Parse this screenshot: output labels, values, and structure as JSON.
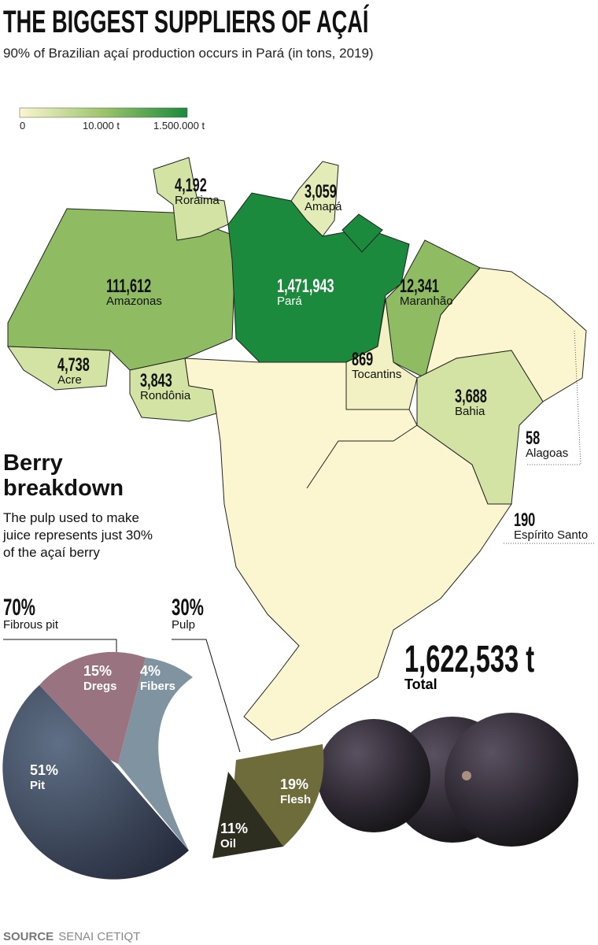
{
  "header": {
    "title": "THE BIGGEST SUPPLIERS OF AÇAÍ",
    "subtitle": "90% of Brazilian açaí production occurs in Pará (in tons, 2019)"
  },
  "legend": {
    "labels": [
      "0",
      "10.000 t",
      "1.500.000 t"
    ]
  },
  "map": {
    "states": [
      {
        "value": "4,192",
        "name": "Roraima"
      },
      {
        "value": "3,059",
        "name": "Amapá"
      },
      {
        "value": "111,612",
        "name": "Amazonas"
      },
      {
        "value": "1,471,943",
        "name": "Pará"
      },
      {
        "value": "12,341",
        "name": "Maranhão"
      },
      {
        "value": "4,738",
        "name": "Acre"
      },
      {
        "value": "3,843",
        "name": "Rondônia"
      },
      {
        "value": "869",
        "name": "Tocantins"
      },
      {
        "value": "3,688",
        "name": "Bahia"
      },
      {
        "value": "58",
        "name": "Alagoas"
      },
      {
        "value": "190",
        "name": "Espírito Santo"
      }
    ],
    "total": {
      "value": "1,622,533 t",
      "label": "Total"
    }
  },
  "breakdown": {
    "title": "Berry breakdown",
    "text": "The pulp used to make juice represents just 30% of the açaí berry",
    "groups": [
      {
        "percent": "70%",
        "label": "Fibrous pit"
      },
      {
        "percent": "30%",
        "label": "Pulp"
      }
    ],
    "parts": [
      {
        "percent": "15%",
        "label": "Dregs"
      },
      {
        "percent": "4%",
        "label": "Fibers"
      },
      {
        "percent": "51%",
        "label": "Pit"
      },
      {
        "percent": "19%",
        "label": "Flesh"
      },
      {
        "percent": "11%",
        "label": "Oil"
      }
    ]
  },
  "source": {
    "label": "SOURCE",
    "text": "SENAI CETIQT"
  }
}
